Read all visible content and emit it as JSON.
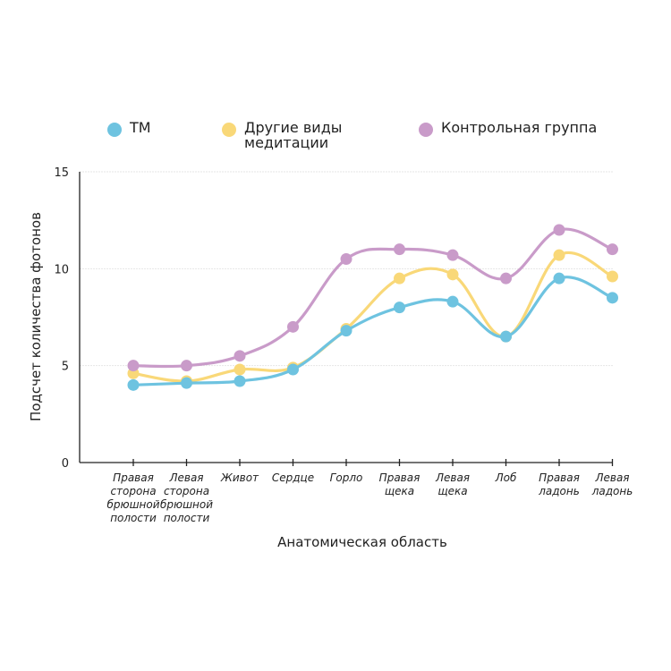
{
  "chart_data": {
    "type": "line",
    "title": "",
    "xlabel": "Анатомическая область",
    "ylabel": "Подсчет количества фотонов",
    "ylim": [
      0,
      15
    ],
    "yticks": [
      0,
      5,
      10,
      15
    ],
    "grid": true,
    "legend_position": "top",
    "smooth": true,
    "categories": [
      [
        "Правая",
        "сторона",
        "брюшной",
        "полости"
      ],
      [
        "Левая",
        "сторона",
        "брюшной",
        "полости"
      ],
      [
        "Живот"
      ],
      [
        "Сердце"
      ],
      [
        "Горло"
      ],
      [
        "Правая",
        "щека"
      ],
      [
        "Левая",
        "щека"
      ],
      [
        "Лоб"
      ],
      [
        "Правая",
        "ладонь"
      ],
      [
        "Левая",
        "ладонь"
      ]
    ],
    "series": [
      {
        "name": "ТМ",
        "legend_lines": [
          "ТМ"
        ],
        "color": "#6ec3e0",
        "values": [
          4.0,
          4.1,
          4.2,
          4.8,
          6.8,
          8.0,
          8.3,
          6.5,
          9.5,
          8.5
        ]
      },
      {
        "name": "Другие виды медитации",
        "legend_lines": [
          "Другие виды",
          "медитации"
        ],
        "color": "#f9d878",
        "values": [
          4.6,
          4.2,
          4.8,
          4.9,
          6.9,
          9.5,
          9.7,
          6.5,
          10.7,
          9.6
        ]
      },
      {
        "name": "Контрольная группа",
        "legend_lines": [
          "Контрольная группа"
        ],
        "color": "#c99bc9",
        "values": [
          5.0,
          5.0,
          5.5,
          7.0,
          10.5,
          11.0,
          10.7,
          9.5,
          12.0,
          11.0
        ]
      }
    ]
  }
}
